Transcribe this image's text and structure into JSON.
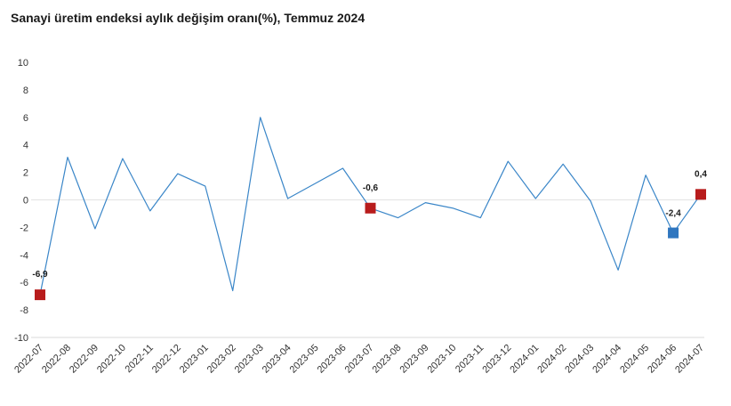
{
  "chart_data": {
    "type": "line",
    "title": "Sanayi üretim endeksi aylık değişim oranı(%), Temmuz 2024",
    "xlabel": "",
    "ylabel": "",
    "ylim": [
      -10,
      10
    ],
    "yticks": [
      "10",
      "8",
      "6",
      "4",
      "2",
      "0",
      "-2",
      "-4",
      "-6",
      "-8",
      "-10"
    ],
    "grid": false,
    "line_color": "#3a86c8",
    "categories": [
      "2022-07",
      "2022-08",
      "2022-09",
      "2022-10",
      "2022-11",
      "2022-12",
      "2023-01",
      "2023-02",
      "2023-03",
      "2023-04",
      "2023-05",
      "2023-06",
      "2023-07",
      "2023-08",
      "2023-09",
      "2023-10",
      "2023-11",
      "2023-12",
      "2024-01",
      "2024-02",
      "2024-03",
      "2024-04",
      "2024-05",
      "2024-06",
      "2024-07"
    ],
    "series": [
      {
        "values": [
          -6.9,
          3.1,
          -2.1,
          3.0,
          -0.8,
          1.9,
          1.0,
          -6.6,
          6.0,
          0.1,
          1.2,
          2.3,
          -0.6,
          -1.3,
          -0.2,
          -0.6,
          -1.3,
          2.8,
          0.1,
          2.6,
          -0.1,
          -5.1,
          1.8,
          -2.4,
          0.4
        ]
      }
    ],
    "highlights": [
      {
        "index": 0,
        "label": "-6,9",
        "color": "#b81c1c"
      },
      {
        "index": 12,
        "label": "-0,6",
        "color": "#b81c1c"
      },
      {
        "index": 23,
        "label": "-2,4",
        "color": "#2f76bf"
      },
      {
        "index": 24,
        "label": "0,4",
        "color": "#b81c1c"
      }
    ]
  }
}
